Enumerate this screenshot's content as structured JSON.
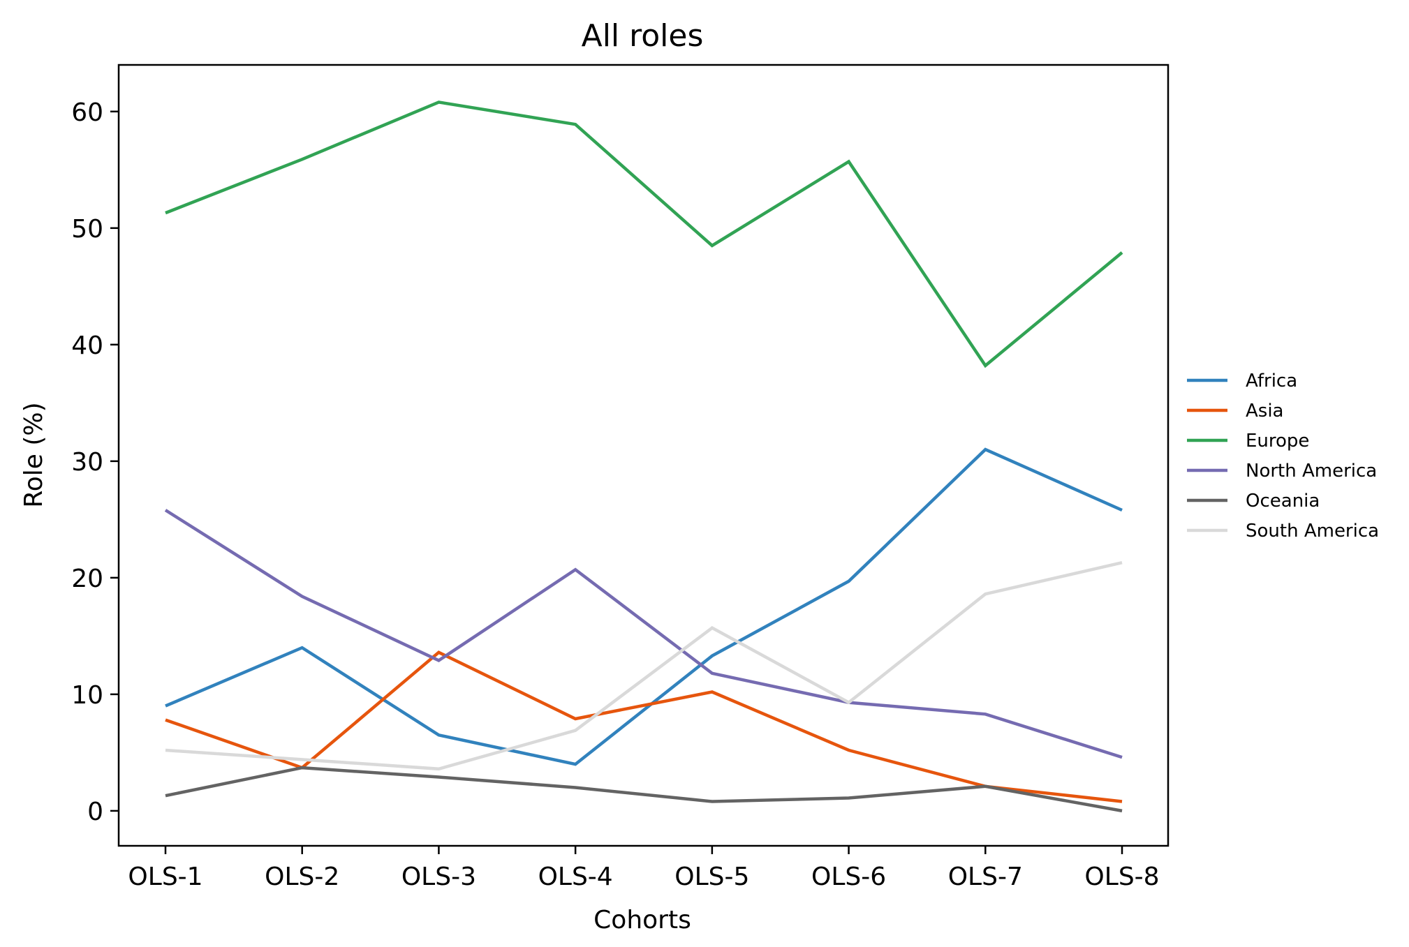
{
  "chart_data": {
    "type": "line",
    "title": "All roles",
    "xlabel": "Cohorts",
    "ylabel": "Role (%)",
    "categories": [
      "OLS-1",
      "OLS-2",
      "OLS-3",
      "OLS-4",
      "OLS-5",
      "OLS-6",
      "OLS-7",
      "OLS-8"
    ],
    "ylim": [
      -3,
      64
    ],
    "yticks": [
      0,
      10,
      20,
      30,
      40,
      50,
      60
    ],
    "grid": false,
    "legend_position": "right",
    "series": [
      {
        "name": "Africa",
        "color": "#3182bd",
        "values": [
          9.0,
          14.0,
          6.5,
          4.0,
          13.3,
          19.7,
          31.0,
          25.8
        ]
      },
      {
        "name": "Asia",
        "color": "#e6550d",
        "values": [
          7.8,
          3.7,
          13.6,
          7.9,
          10.2,
          5.2,
          2.1,
          0.8
        ]
      },
      {
        "name": "Europe",
        "color": "#31a354",
        "values": [
          51.3,
          55.9,
          60.8,
          58.9,
          48.5,
          55.7,
          38.2,
          47.9
        ]
      },
      {
        "name": "North America",
        "color": "#756bb1",
        "values": [
          25.8,
          18.4,
          12.9,
          20.7,
          11.8,
          9.3,
          8.3,
          4.6
        ]
      },
      {
        "name": "Oceania",
        "color": "#636363",
        "values": [
          1.3,
          3.7,
          2.9,
          2.0,
          0.8,
          1.1,
          2.1,
          0.0
        ]
      },
      {
        "name": "South America",
        "color": "#d9d9d9",
        "values": [
          5.2,
          4.4,
          3.6,
          6.9,
          15.7,
          9.3,
          18.6,
          21.3
        ]
      }
    ]
  }
}
